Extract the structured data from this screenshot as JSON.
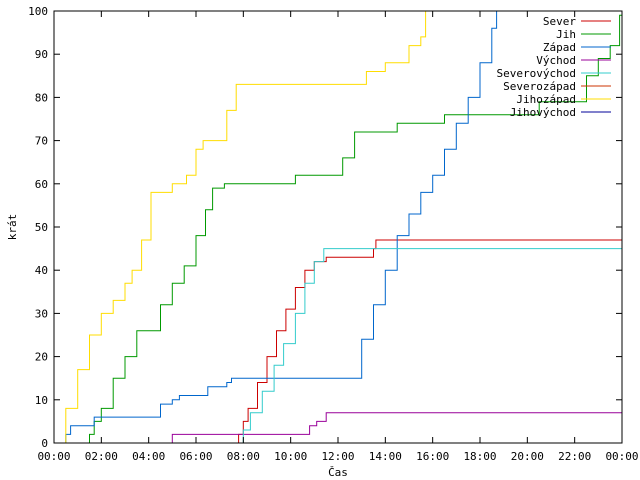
{
  "chart_data": {
    "type": "line",
    "xlabel": "Čas",
    "ylabel": "krát",
    "x_unit": "hours",
    "xlim": [
      0,
      24
    ],
    "ylim": [
      0,
      100
    ],
    "x_ticks": [
      {
        "value": 0,
        "label": "00:00"
      },
      {
        "value": 2,
        "label": "02:00"
      },
      {
        "value": 4,
        "label": "04:00"
      },
      {
        "value": 6,
        "label": "06:00"
      },
      {
        "value": 8,
        "label": "08:00"
      },
      {
        "value": 10,
        "label": "10:00"
      },
      {
        "value": 12,
        "label": "12:00"
      },
      {
        "value": 14,
        "label": "14:00"
      },
      {
        "value": 16,
        "label": "16:00"
      },
      {
        "value": 18,
        "label": "18:00"
      },
      {
        "value": 20,
        "label": "20:00"
      },
      {
        "value": 22,
        "label": "22:00"
      },
      {
        "value": 24,
        "label": "00:00"
      }
    ],
    "y_ticks": [
      {
        "value": 0,
        "label": "0"
      },
      {
        "value": 10,
        "label": "10"
      },
      {
        "value": 20,
        "label": "20"
      },
      {
        "value": 30,
        "label": "30"
      },
      {
        "value": 40,
        "label": "40"
      },
      {
        "value": 50,
        "label": "50"
      },
      {
        "value": 60,
        "label": "60"
      },
      {
        "value": 70,
        "label": "70"
      },
      {
        "value": 80,
        "label": "80"
      },
      {
        "value": 90,
        "label": "90"
      },
      {
        "value": 100,
        "label": "100"
      }
    ],
    "legend_position": "top-right",
    "grid": false,
    "series": [
      {
        "name": "Sever",
        "color": "#cc0000",
        "points": [
          [
            7.75,
            0
          ],
          [
            7.8,
            2
          ],
          [
            8.0,
            5
          ],
          [
            8.2,
            8
          ],
          [
            8.6,
            14
          ],
          [
            9.0,
            20
          ],
          [
            9.4,
            26
          ],
          [
            9.8,
            31
          ],
          [
            10.2,
            36
          ],
          [
            10.6,
            40
          ],
          [
            11.0,
            42
          ],
          [
            11.5,
            43
          ],
          [
            13.4,
            43
          ],
          [
            13.5,
            45
          ],
          [
            13.6,
            47
          ],
          [
            24,
            47
          ]
        ]
      },
      {
        "name": "Jih",
        "color": "#009900",
        "points": [
          [
            1.4,
            0
          ],
          [
            1.5,
            2
          ],
          [
            1.7,
            5
          ],
          [
            2.0,
            8
          ],
          [
            2.5,
            15
          ],
          [
            3.0,
            20
          ],
          [
            3.5,
            26
          ],
          [
            4.1,
            26
          ],
          [
            4.5,
            32
          ],
          [
            5.0,
            37
          ],
          [
            5.5,
            41
          ],
          [
            6.0,
            48
          ],
          [
            6.4,
            54
          ],
          [
            6.7,
            59
          ],
          [
            7.2,
            60
          ],
          [
            10.0,
            60
          ],
          [
            10.2,
            62
          ],
          [
            12.0,
            62
          ],
          [
            12.2,
            66
          ],
          [
            12.7,
            72
          ],
          [
            14.0,
            72
          ],
          [
            14.5,
            74
          ],
          [
            16.3,
            74
          ],
          [
            16.5,
            76
          ],
          [
            19.5,
            76
          ],
          [
            20.5,
            79
          ],
          [
            22.5,
            85
          ],
          [
            23.0,
            89
          ],
          [
            23.5,
            92
          ],
          [
            23.9,
            99
          ],
          [
            24,
            99
          ]
        ]
      },
      {
        "name": "Západ",
        "color": "#0066cc",
        "points": [
          [
            0.4,
            0
          ],
          [
            0.5,
            2
          ],
          [
            0.7,
            4
          ],
          [
            1.6,
            4
          ],
          [
            1.7,
            6
          ],
          [
            4.2,
            6
          ],
          [
            4.5,
            9
          ],
          [
            5.0,
            10
          ],
          [
            5.3,
            11
          ],
          [
            6.2,
            11
          ],
          [
            6.5,
            13
          ],
          [
            7.3,
            14
          ],
          [
            7.5,
            15
          ],
          [
            12.5,
            15
          ],
          [
            13.0,
            24
          ],
          [
            13.5,
            32
          ],
          [
            14.0,
            40
          ],
          [
            14.5,
            48
          ],
          [
            15.0,
            53
          ],
          [
            15.5,
            58
          ],
          [
            16.0,
            62
          ],
          [
            16.5,
            68
          ],
          [
            17.0,
            74
          ],
          [
            17.5,
            80
          ],
          [
            18.0,
            88
          ],
          [
            18.5,
            96
          ],
          [
            18.7,
            100
          ]
        ]
      },
      {
        "name": "Východ",
        "color": "#990099",
        "points": [
          [
            4.9,
            0
          ],
          [
            5.0,
            2
          ],
          [
            10.5,
            2
          ],
          [
            10.8,
            4
          ],
          [
            11.1,
            5
          ],
          [
            11.5,
            7
          ],
          [
            24,
            7
          ]
        ]
      },
      {
        "name": "Severovýchod",
        "color": "#33cccc",
        "points": [
          [
            7.9,
            0
          ],
          [
            8.0,
            3
          ],
          [
            8.3,
            7
          ],
          [
            8.8,
            12
          ],
          [
            9.3,
            18
          ],
          [
            9.7,
            23
          ],
          [
            10.2,
            30
          ],
          [
            10.6,
            37
          ],
          [
            11.0,
            42
          ],
          [
            11.4,
            45
          ],
          [
            24,
            45
          ]
        ]
      },
      {
        "name": "Severozápad",
        "color": "#cc3300",
        "points": []
      },
      {
        "name": "Jihozápad",
        "color": "#ffdd00",
        "points": [
          [
            0.2,
            0
          ],
          [
            0.5,
            8
          ],
          [
            1.0,
            17
          ],
          [
            1.5,
            25
          ],
          [
            2.0,
            30
          ],
          [
            2.5,
            33
          ],
          [
            3.0,
            37
          ],
          [
            3.3,
            40
          ],
          [
            3.7,
            47
          ],
          [
            4.1,
            58
          ],
          [
            4.7,
            58
          ],
          [
            5.0,
            60
          ],
          [
            5.6,
            62
          ],
          [
            6.0,
            68
          ],
          [
            6.3,
            70
          ],
          [
            7.1,
            70
          ],
          [
            7.3,
            77
          ],
          [
            7.7,
            83
          ],
          [
            12.8,
            83
          ],
          [
            13.2,
            86
          ],
          [
            14.0,
            88
          ],
          [
            15.0,
            92
          ],
          [
            15.5,
            94
          ],
          [
            15.7,
            100
          ]
        ]
      },
      {
        "name": "Jihovýchod",
        "color": "#000099",
        "points": []
      }
    ]
  }
}
